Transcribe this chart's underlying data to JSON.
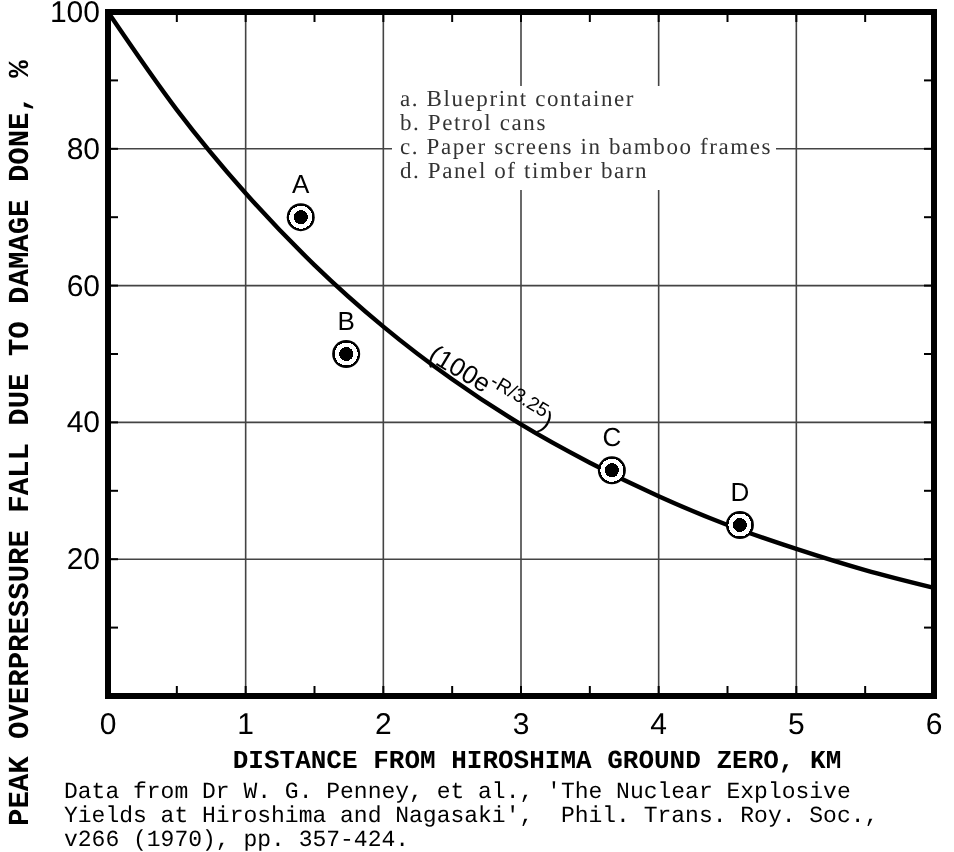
{
  "chart_data": {
    "type": "scatter",
    "xlabel": "DISTANCE FROM HIROSHIMA GROUND ZERO, KM",
    "ylabel": "PEAK OVERPRESSURE FALL DUE TO DAMAGE DONE, %",
    "series": [
      {
        "type": "line",
        "color": "#000000",
        "marker": "none",
        "line_style": "solid",
        "x": [
          0,
          0.5,
          1,
          1.5,
          2,
          2.5,
          3,
          3.5,
          4,
          4.5,
          5,
          5.5,
          6
        ],
        "values": [
          100,
          85.7,
          73.5,
          63.0,
          54.0,
          46.3,
          39.7,
          34.1,
          29.2,
          25.0,
          21.5,
          18.4,
          15.8
        ]
      },
      {
        "color": "#000000",
        "marker": "circle",
        "x": [
          1.4,
          1.73,
          3.66,
          4.59
        ],
        "values": [
          70,
          50,
          33,
          25
        ]
      }
    ],
    "xlim": [
      0,
      6
    ],
    "xticks": [
      0,
      {
        "value": 0.5,
        "label": null
      },
      1,
      {
        "value": 1.5,
        "label": null
      },
      2,
      {
        "value": 2.5,
        "label": null
      },
      3,
      {
        "value": 3.5,
        "label": null
      },
      4,
      {
        "value": 4.5,
        "label": null
      },
      5,
      {
        "value": 5.5,
        "label": null
      },
      6
    ],
    "ylim": [
      0,
      100
    ],
    "yticks": [
      {
        "value": 0,
        "label": null
      },
      {
        "value": 10,
        "label": null
      },
      20,
      {
        "value": 30,
        "label": null
      },
      40,
      {
        "value": 50,
        "label": null
      },
      60,
      {
        "value": 70,
        "label": null
      },
      80,
      {
        "value": 90,
        "label": null
      },
      100
    ],
    "grid": true,
    "annotations": [
      {
        "text": "A",
        "x": 1.4,
        "y": 70
      },
      {
        "text": "B",
        "x": 1.73,
        "y": 50
      },
      {
        "text": "C",
        "x": 3.66,
        "y": 33
      },
      {
        "text": "D",
        "x": 4.59,
        "y": 25
      },
      {
        "text": "(100e$^{-R/3.25}$)",
        "x": 2.75,
        "y": 44
      },
      "a. Blueprint container",
      "b. Petrol cans",
      "c. Paper screens in bamboo frames",
      "d. Panel of timber barn",
      "Data from Dr W. G. Penney, et al., 'The Nuclear Explosive Yields at Hiroshima and Nagasaki',  Phil. Trans. Roy. Soc., v266 (1970), pp. 357-424."
    ]
  }
}
